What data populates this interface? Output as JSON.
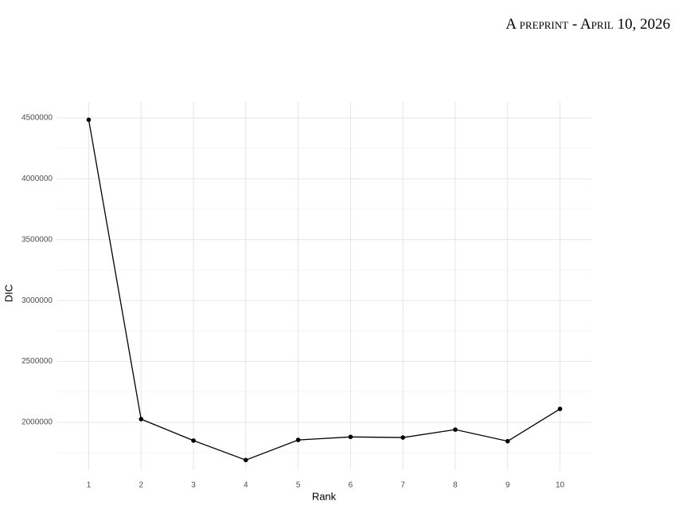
{
  "header": "A preprint - April 10, 2026",
  "chart_data": {
    "type": "line",
    "x_label": "Rank",
    "y_label": "DIC",
    "x": [
      1,
      2,
      3,
      4,
      5,
      6,
      7,
      8,
      9,
      10
    ],
    "series": [
      {
        "name": "DIC",
        "color": "#000000",
        "values": [
          4485000,
          2026000,
          1850000,
          1690000,
          1855000,
          1880000,
          1875000,
          1940000,
          1845000,
          2110000
        ]
      }
    ],
    "xlim": [
      0.4,
      10.6
    ],
    "xticks": [
      1,
      2,
      3,
      4,
      5,
      6,
      7,
      8,
      9,
      10
    ],
    "ylim": [
      1607000,
      4631000
    ],
    "yticks": [
      2000000,
      2500000,
      3000000,
      3500000,
      4000000,
      4500000
    ],
    "grid": true
  }
}
